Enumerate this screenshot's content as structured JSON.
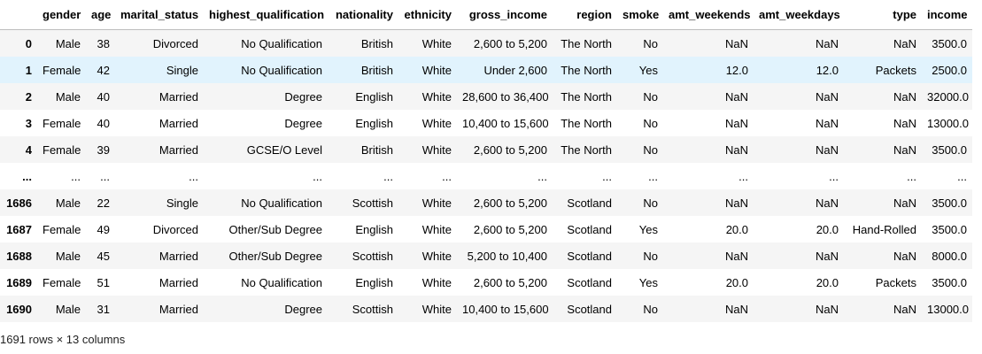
{
  "table": {
    "index_header": "",
    "columns": [
      "gender",
      "age",
      "marital_status",
      "highest_qualification",
      "nationality",
      "ethnicity",
      "gross_income",
      "region",
      "smoke",
      "amt_weekends",
      "amt_weekdays",
      "type",
      "income"
    ],
    "rows": [
      {
        "index": "0",
        "cells": [
          "Male",
          "38",
          "Divorced",
          "No Qualification",
          "British",
          "White",
          "2,600 to 5,200",
          "The North",
          "No",
          "NaN",
          "NaN",
          "NaN",
          "3500.0"
        ]
      },
      {
        "index": "1",
        "cells": [
          "Female",
          "42",
          "Single",
          "No Qualification",
          "British",
          "White",
          "Under 2,600",
          "The North",
          "Yes",
          "12.0",
          "12.0",
          "Packets",
          "2500.0"
        ]
      },
      {
        "index": "2",
        "cells": [
          "Male",
          "40",
          "Married",
          "Degree",
          "English",
          "White",
          "28,600 to 36,400",
          "The North",
          "No",
          "NaN",
          "NaN",
          "NaN",
          "32000.0"
        ]
      },
      {
        "index": "3",
        "cells": [
          "Female",
          "40",
          "Married",
          "Degree",
          "English",
          "White",
          "10,400 to 15,600",
          "The North",
          "No",
          "NaN",
          "NaN",
          "NaN",
          "13000.0"
        ]
      },
      {
        "index": "4",
        "cells": [
          "Female",
          "39",
          "Married",
          "GCSE/O Level",
          "British",
          "White",
          "2,600 to 5,200",
          "The North",
          "No",
          "NaN",
          "NaN",
          "NaN",
          "3500.0"
        ]
      },
      {
        "index": "...",
        "cells": [
          "...",
          "...",
          "...",
          "...",
          "...",
          "...",
          "...",
          "...",
          "...",
          "...",
          "...",
          "...",
          "..."
        ]
      },
      {
        "index": "1686",
        "cells": [
          "Male",
          "22",
          "Single",
          "No Qualification",
          "Scottish",
          "White",
          "2,600 to 5,200",
          "Scotland",
          "No",
          "NaN",
          "NaN",
          "NaN",
          "3500.0"
        ]
      },
      {
        "index": "1687",
        "cells": [
          "Female",
          "49",
          "Divorced",
          "Other/Sub Degree",
          "English",
          "White",
          "2,600 to 5,200",
          "Scotland",
          "Yes",
          "20.0",
          "20.0",
          "Hand-Rolled",
          "3500.0"
        ]
      },
      {
        "index": "1688",
        "cells": [
          "Male",
          "45",
          "Married",
          "Other/Sub Degree",
          "Scottish",
          "White",
          "5,200 to 10,400",
          "Scotland",
          "No",
          "NaN",
          "NaN",
          "NaN",
          "8000.0"
        ]
      },
      {
        "index": "1689",
        "cells": [
          "Female",
          "51",
          "Married",
          "No Qualification",
          "English",
          "White",
          "2,600 to 5,200",
          "Scotland",
          "Yes",
          "20.0",
          "20.0",
          "Packets",
          "3500.0"
        ]
      },
      {
        "index": "1690",
        "cells": [
          "Male",
          "31",
          "Married",
          "Degree",
          "Scottish",
          "White",
          "10,400 to 15,600",
          "Scotland",
          "No",
          "NaN",
          "NaN",
          "NaN",
          "13000.0"
        ]
      }
    ],
    "hovered_row": "1"
  },
  "footer": {
    "shape_text": "1691 rows × 13 columns"
  },
  "colors": {
    "row_alt": "#f5f5f5",
    "row_hover": "#e1f3fd",
    "header_border": "#bdbdbd"
  }
}
